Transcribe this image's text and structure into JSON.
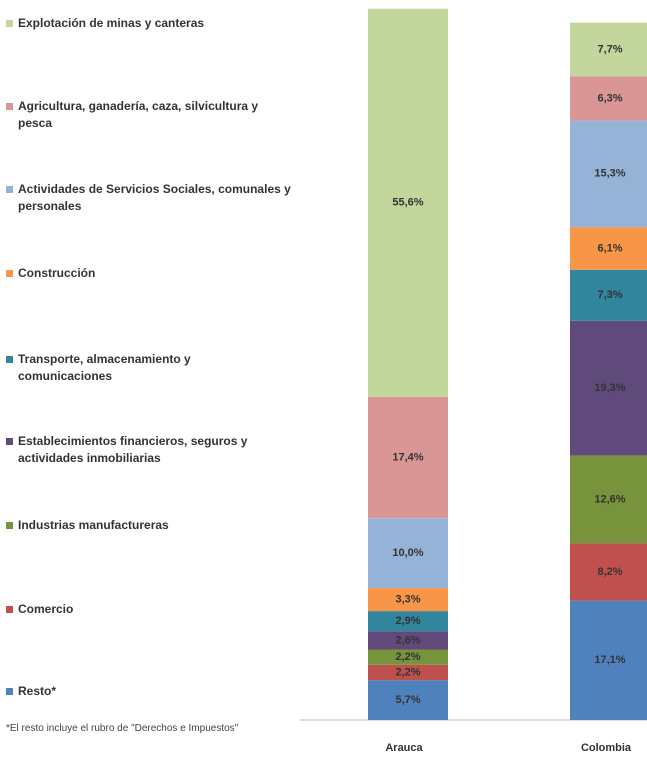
{
  "chart_data": {
    "type": "stacked_bar",
    "categories": [
      "Arauca",
      "Colombia"
    ],
    "ylim": [
      0,
      102
    ],
    "series": [
      {
        "name": "Resto*",
        "color": "#4f81bd",
        "values": [
          5.7,
          17.1
        ],
        "value_labels": [
          "5,7%",
          "17,1%"
        ]
      },
      {
        "name": "Comercio",
        "color": "#c0504d",
        "values": [
          2.2,
          8.2
        ],
        "value_labels": [
          "2,2%",
          "8,2%"
        ]
      },
      {
        "name": "Industrias manufactureras",
        "color": "#77933c",
        "values": [
          2.2,
          12.6
        ],
        "value_labels": [
          "2,2%",
          "12,6%"
        ]
      },
      {
        "name": "Establecimientos financieros, seguros y actividades inmobiliarias",
        "color": "#604a7b",
        "values": [
          2.6,
          19.3
        ],
        "value_labels": [
          "2,6%",
          "19,3%"
        ]
      },
      {
        "name": "Transporte, almacenamiento y comunicaciones",
        "color": "#31859c",
        "values": [
          2.9,
          7.3
        ],
        "value_labels": [
          "2,9%",
          "7,3%"
        ]
      },
      {
        "name": "Construcción",
        "color": "#f79646",
        "values": [
          3.3,
          6.1
        ],
        "value_labels": [
          "3,3%",
          "6,1%"
        ]
      },
      {
        "name": "Actividades de Servicios Sociales, comunales y personales",
        "color": "#95b3d7",
        "values": [
          10.0,
          15.3
        ],
        "value_labels": [
          "10,0%",
          "15,3%"
        ]
      },
      {
        "name": "Agricultura, ganadería, caza, silvicultura y pesca",
        "color": "#d99694",
        "values": [
          17.4,
          6.3
        ],
        "value_labels": [
          "17,4%",
          "6,3%"
        ]
      },
      {
        "name": "Explotación de minas y canteras",
        "color": "#c3d69b",
        "values": [
          55.6,
          7.7
        ],
        "value_labels": [
          "55,6%",
          "7,7%"
        ]
      }
    ],
    "footnote": "*El resto incluye el rubro de \"Derechos e Impuestos\""
  }
}
